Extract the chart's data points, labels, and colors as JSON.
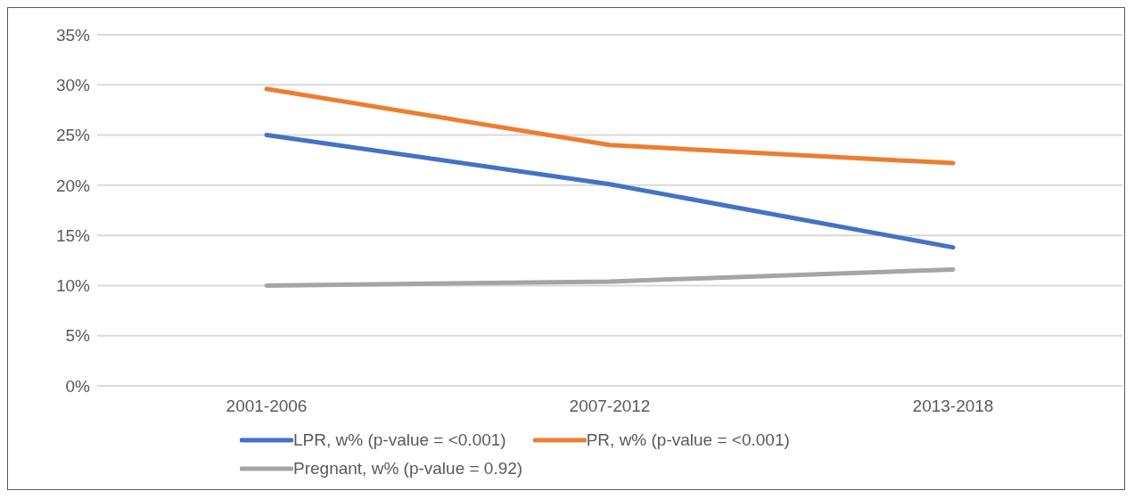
{
  "chart_data": {
    "type": "line",
    "categories": [
      "2001-2006",
      "2007-2012",
      "2013-2018"
    ],
    "series": [
      {
        "name": "LPR, w% (p-value = <0.001)",
        "color": "#4472c4",
        "values": [
          25.0,
          20.1,
          13.8
        ]
      },
      {
        "name": "PR, w% (p-value = <0.001)",
        "color": "#ed7d31",
        "values": [
          29.6,
          24.0,
          22.2
        ]
      },
      {
        "name": "Pregnant, w% (p-value = 0.92)",
        "color": "#a5a5a5",
        "values": [
          10.0,
          10.4,
          11.6
        ]
      }
    ],
    "ylim": [
      0,
      35
    ],
    "yticks": [
      {
        "value": 0,
        "label": "0%"
      },
      {
        "value": 5,
        "label": "5%"
      },
      {
        "value": 10,
        "label": "10%"
      },
      {
        "value": 15,
        "label": "15%"
      },
      {
        "value": 20,
        "label": "20%"
      },
      {
        "value": 25,
        "label": "25%"
      },
      {
        "value": 30,
        "label": "30%"
      },
      {
        "value": 35,
        "label": "35%"
      }
    ],
    "grid": "y",
    "legend": "bottom",
    "marker": "none",
    "line_style": "solid"
  }
}
